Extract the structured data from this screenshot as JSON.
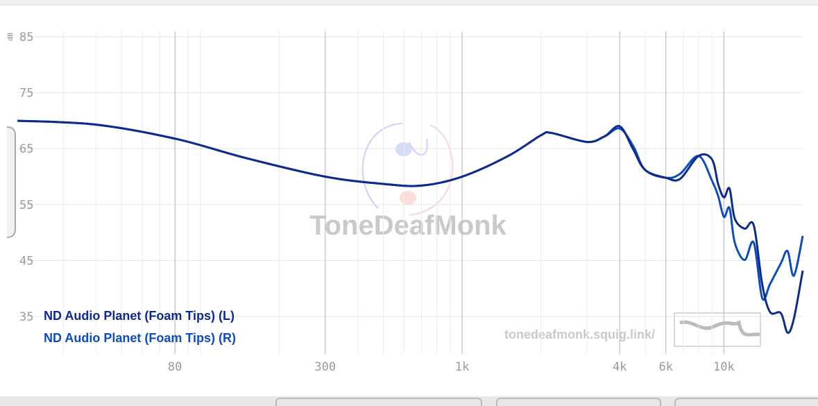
{
  "chart_data": {
    "type": "line",
    "log_x": true,
    "grid": true,
    "y_label": "dB",
    "watermark": "ToneDeafMonk",
    "site": "tonedeafmonk.squig.link/",
    "xlim": [
      20,
      20000
    ],
    "ylim": [
      28.3,
      86
    ],
    "xticks": [
      80,
      300,
      {
        "value": 1000,
        "label": "1k"
      },
      {
        "value": 4000,
        "label": "4k"
      },
      {
        "value": 6000,
        "label": "6k"
      },
      {
        "value": 10000,
        "label": "10k"
      }
    ],
    "yticks": [
      35,
      45,
      55,
      65,
      75,
      85
    ],
    "x": [
      20,
      40,
      80,
      150,
      300,
      500,
      700,
      1000,
      1500,
      2000,
      2200,
      3000,
      3500,
      4000,
      4500,
      5000,
      6000,
      6800,
      8000,
      9000,
      9500,
      10000,
      10500,
      11000,
      12000,
      13000,
      14000,
      15000,
      16500,
      17500,
      18500,
      20000
    ],
    "series": [
      {
        "name": "ND Audio Planet (Foam Tips) (L)",
        "color": "#0d2a8c",
        "values": [
          70.0,
          69.3,
          66.8,
          63.3,
          60.0,
          58.7,
          58.4,
          60.0,
          63.7,
          67.4,
          67.8,
          66.2,
          67.2,
          69.0,
          64.9,
          61.2,
          59.8,
          59.6,
          63.7,
          63.1,
          58.7,
          56.3,
          57.9,
          52.5,
          50.7,
          51.3,
          40.8,
          35.8,
          35.6,
          32.1,
          34.6,
          43.2
        ]
      },
      {
        "name": "ND Audio Planet (Foam Tips) (R)",
        "color": "#0c4cc0",
        "values": [
          70.0,
          69.3,
          66.8,
          63.3,
          60.0,
          58.7,
          58.4,
          60.0,
          63.7,
          67.4,
          67.8,
          66.2,
          67.2,
          68.6,
          65.5,
          61.2,
          59.8,
          60.5,
          63.7,
          59.3,
          56.6,
          52.8,
          54.4,
          48.2,
          45.1,
          48.2,
          38.3,
          40.8,
          44.5,
          46.7,
          42.3,
          49.4
        ]
      }
    ]
  }
}
